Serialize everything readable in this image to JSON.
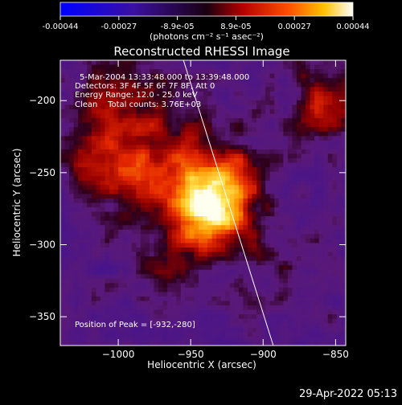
{
  "colorbar": {
    "tick_labels": [
      "-0.00044",
      "-0.00027",
      "-8.9e-05",
      "8.9e-05",
      "0.00027",
      "0.00044"
    ],
    "unit_label": "(photons cm⁻² s⁻¹ asec⁻²)",
    "range": [
      -0.00044,
      0.00044
    ]
  },
  "chart_data": {
    "type": "heatmap",
    "title": "Reconstructed RHESSI Image",
    "xlabel": "Heliocentric X (arcsec)",
    "ylabel": "Heliocentric Y (arcsec)",
    "xlim": [
      -1040,
      -843
    ],
    "ylim": [
      -370,
      -172
    ],
    "x_ticks": [
      -1000,
      -950,
      -900,
      -850
    ],
    "y_ticks": [
      -200,
      -250,
      -300,
      -350
    ],
    "x_tick_labels": [
      "−1000",
      "−950",
      "−900",
      "−850"
    ],
    "y_tick_labels": [
      "−200",
      "−250",
      "−300",
      "−350"
    ],
    "peak_position": [
      -932,
      -280
    ],
    "limb_line": [
      [
        -955,
        -172
      ],
      [
        -893,
        -370
      ]
    ],
    "annotations": {
      "time": "5-Mar-2004 13:33:48.000 to 13:39:48.000",
      "detectors": "Detectors: 3F 4F 5F 6F 7F 8F, Att 0",
      "energy": "Energy Range: 12.0 - 25.0 keV",
      "clean": "Clean    Total counts: 3.76E+03",
      "peak": "Position of Peak = [-932,-280]"
    }
  },
  "timestamp": "29-Apr-2022 05:13"
}
